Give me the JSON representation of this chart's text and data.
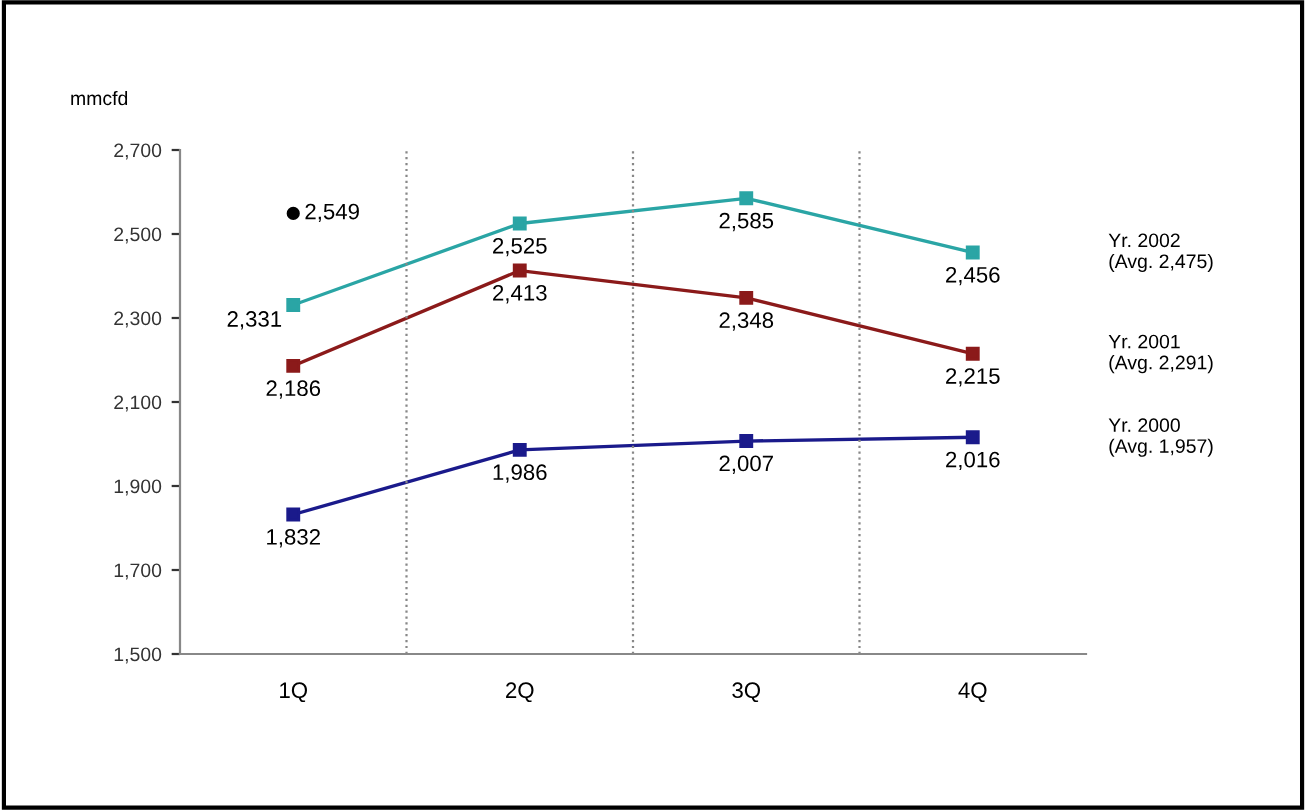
{
  "chart_data": {
    "type": "line",
    "ylabel": "mmcfd",
    "categories": [
      "1Q",
      "2Q",
      "3Q",
      "4Q"
    ],
    "series": [
      {
        "name": "Yr. 2002\n(Avg. 2,475)",
        "color": "#2aa5a5",
        "values": [
          2331,
          2525,
          2585,
          2456
        ],
        "value_labels": [
          "2,331",
          "2,525",
          "2,585",
          "2,456"
        ]
      },
      {
        "name": "Yr. 2001\n(Avg. 2,291)",
        "color": "#8b1a1a",
        "values": [
          2186,
          2413,
          2348,
          2215
        ],
        "value_labels": [
          "2,186",
          "2,413",
          "2,348",
          "2,215"
        ]
      },
      {
        "name": "Yr. 2000\n(Avg. 1,957)",
        "color": "#1a1a8b",
        "values": [
          1832,
          1986,
          2007,
          2016
        ],
        "value_labels": [
          "1,832",
          "1,986",
          "2,007",
          "2,016"
        ]
      },
      {
        "type": "scatter",
        "marker": "circle",
        "color": "#000000",
        "values": [
          2549,
          null,
          null,
          null
        ],
        "value_labels": [
          "2,549",
          null,
          null,
          null
        ]
      }
    ],
    "ylim": [
      1500,
      2700
    ],
    "yticks": [
      {
        "value": 1500,
        "label": "1,500"
      },
      {
        "value": 1700,
        "label": "1,700"
      },
      {
        "value": 1900,
        "label": "1,900"
      },
      {
        "value": 2100,
        "label": "2,100"
      },
      {
        "value": 2300,
        "label": "2,300"
      },
      {
        "value": 2500,
        "label": "2,500"
      },
      {
        "value": 2700,
        "label": "2,700"
      }
    ],
    "grid": "x",
    "marker": "square"
  }
}
